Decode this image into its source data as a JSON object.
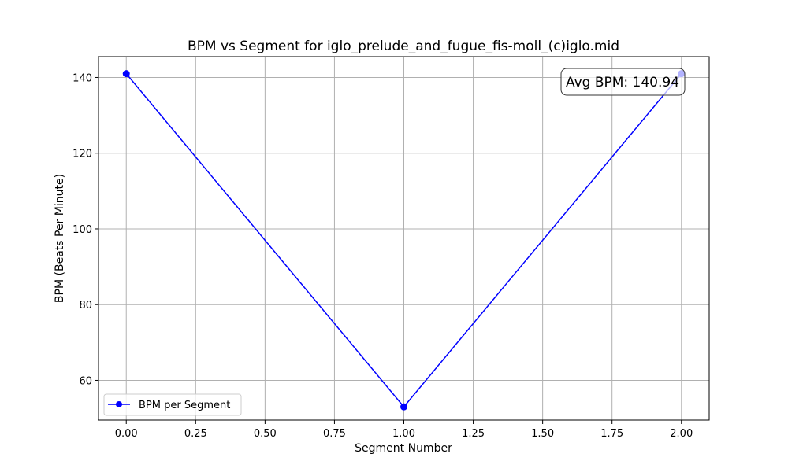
{
  "chart_data": {
    "type": "line",
    "title": "BPM vs Segment for iglo_prelude_and_fugue_fis-moll_(c)iglo.mid",
    "xlabel": "Segment Number",
    "ylabel": "BPM (Beats Per Minute)",
    "xlim": [
      -0.1,
      2.1
    ],
    "ylim": [
      49.5,
      145.5
    ],
    "xticks": [
      0.0,
      0.25,
      0.5,
      0.75,
      1.0,
      1.25,
      1.5,
      1.75,
      2.0
    ],
    "xtick_labels": [
      "0.00",
      "0.25",
      "0.50",
      "0.75",
      "1.00",
      "1.25",
      "1.50",
      "1.75",
      "2.00"
    ],
    "yticks": [
      60,
      80,
      100,
      120,
      140
    ],
    "ytick_labels": [
      "60",
      "80",
      "100",
      "120",
      "140"
    ],
    "grid": true,
    "legend_position": "lower-left",
    "series": [
      {
        "name": "BPM per Segment",
        "color": "#0000ff",
        "marker": "circle",
        "x": [
          0,
          1,
          2
        ],
        "y": [
          141,
          53,
          141
        ]
      }
    ],
    "annotation": {
      "text": "Avg BPM: 140.94",
      "position": "top-right"
    }
  }
}
